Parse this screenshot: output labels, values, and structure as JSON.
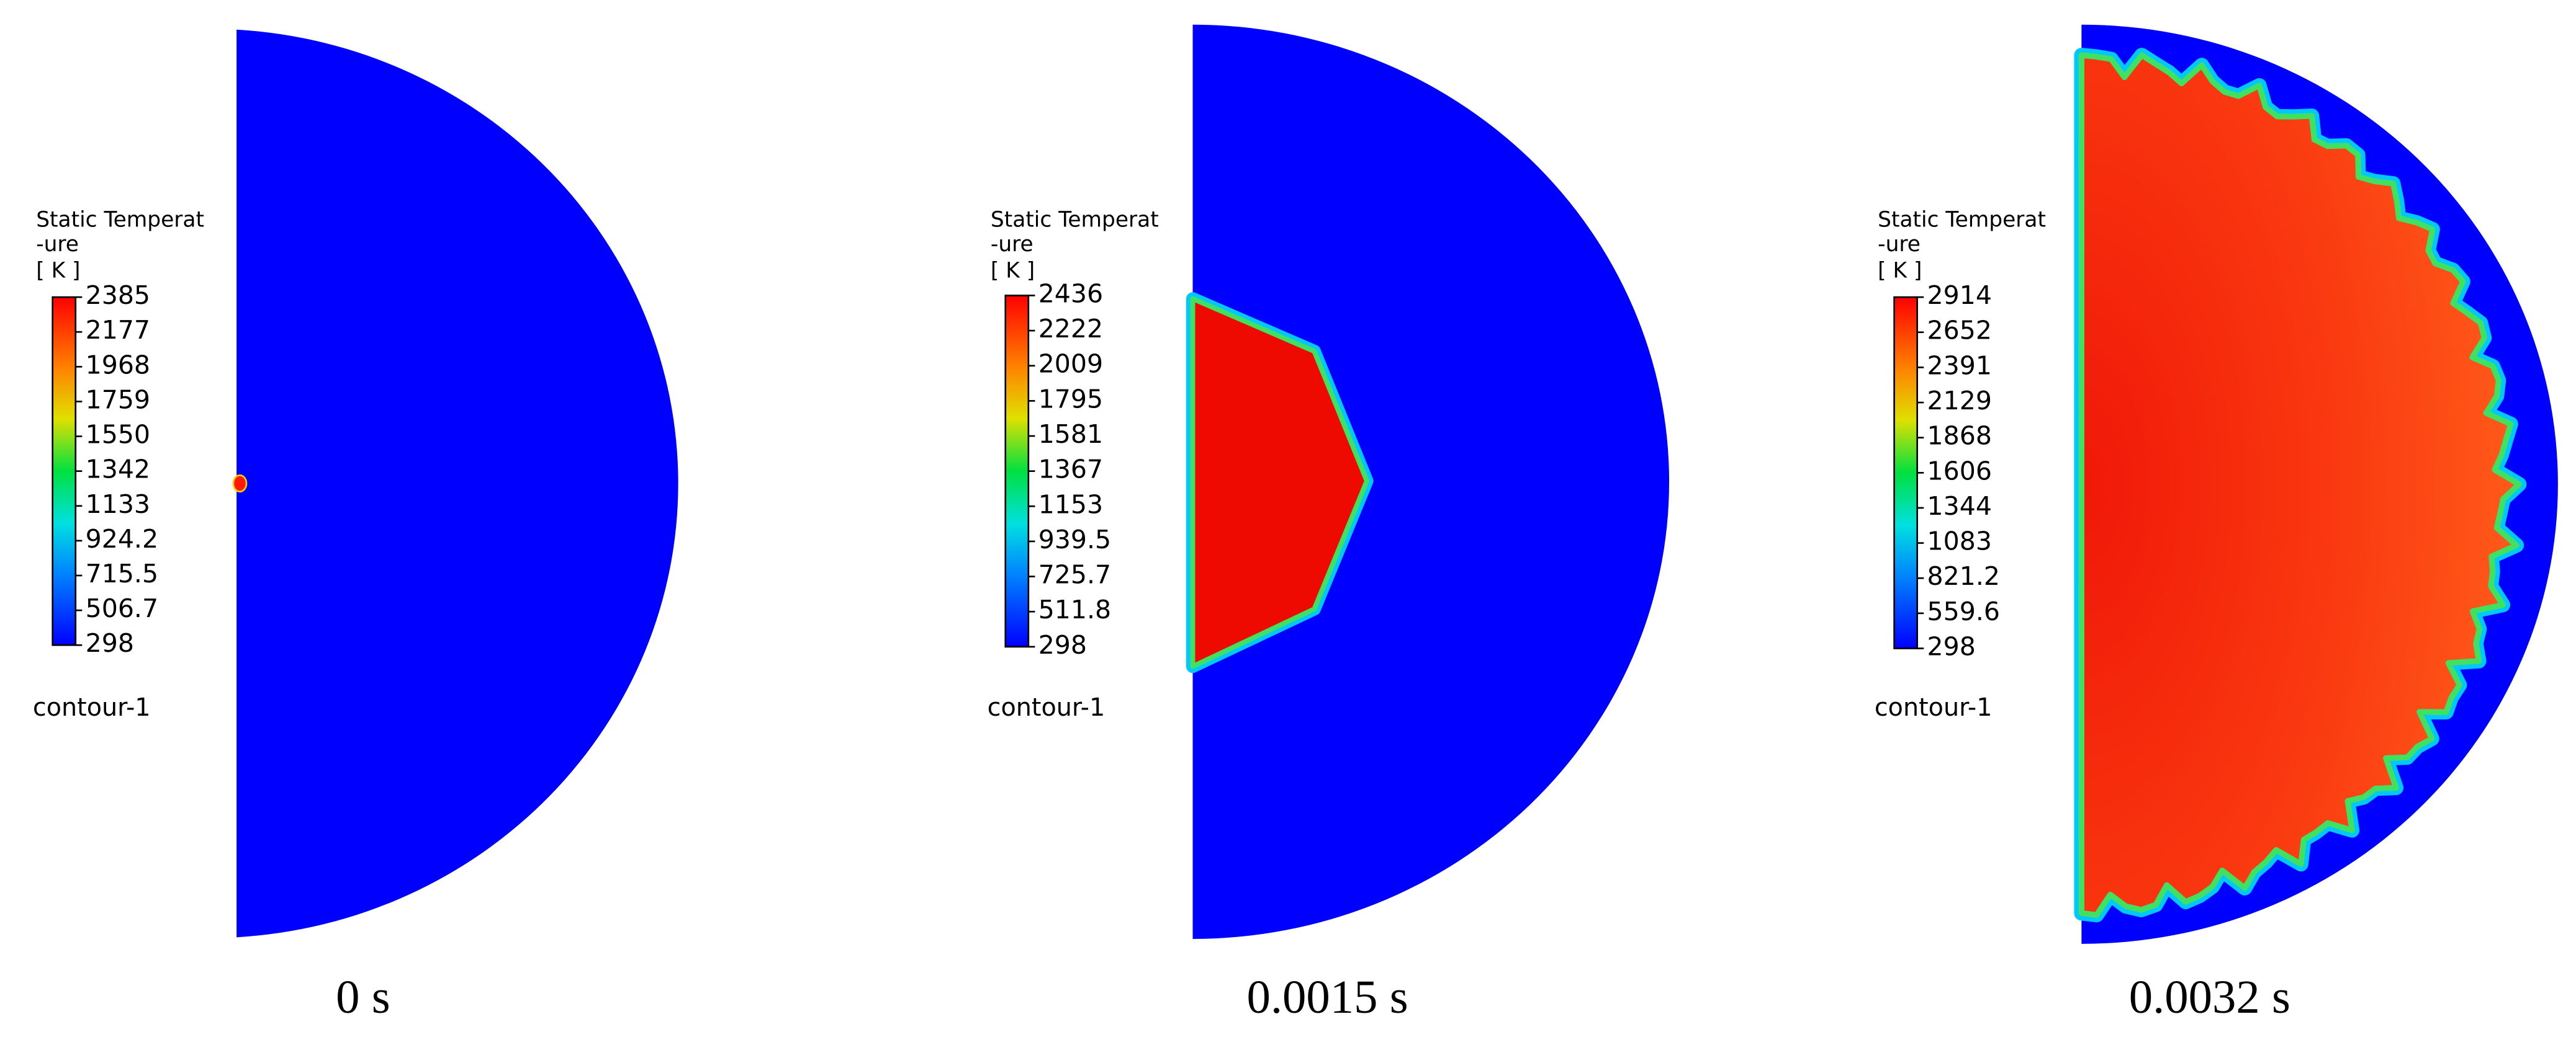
{
  "panels": [
    {
      "legend_title": [
        "Static Temperat",
        "-ure"
      ],
      "unit": "[ K ]",
      "ticks": [
        2385,
        2177,
        1968,
        1759,
        1550,
        1342,
        1133,
        924.2,
        715.5,
        506.7,
        298
      ],
      "label": "contour-1",
      "caption": "0 s"
    },
    {
      "legend_title": [
        "Static Temperat",
        "-ure"
      ],
      "unit": "[ K ]",
      "ticks": [
        2436,
        2222,
        2009,
        1795,
        1581,
        1367,
        1153,
        939.5,
        725.7,
        511.8,
        298
      ],
      "label": "contour-1",
      "caption": "0.0015 s"
    },
    {
      "legend_title": [
        "Static Temperat",
        "-ure"
      ],
      "unit": "[ K ]",
      "ticks": [
        2914,
        2652,
        2391,
        2129,
        1868,
        1606,
        1344,
        1083,
        821.2,
        559.6,
        298
      ],
      "label": "contour-1",
      "caption": "0.0032 s"
    }
  ]
}
